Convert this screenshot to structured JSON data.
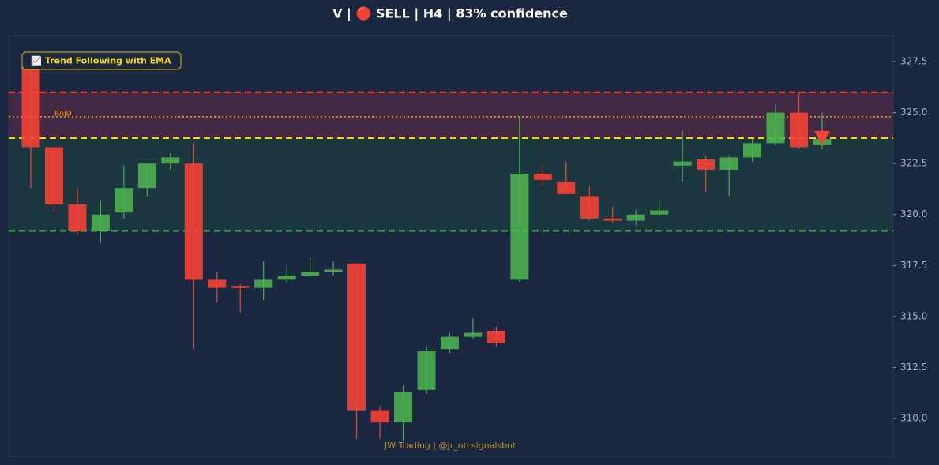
{
  "chart_data": {
    "type": "candlestick",
    "title": "V | 🔴 SELL | H4 | 83% confidence",
    "annotation": "📈 Trend Following with EMA",
    "watermark": "JW Trading | @Jr_otcsignalsbot",
    "up_color": "#4caf50",
    "down_color": "#f44336",
    "open": [
      327.3,
      323.3,
      320.5,
      319.2,
      320.1,
      321.3,
      322.5,
      322.5,
      316.8,
      316.5,
      316.4,
      316.8,
      317.0,
      317.2,
      317.6,
      310.4,
      309.8,
      311.4,
      313.4,
      314.0,
      314.3,
      316.8,
      322.0,
      321.6,
      320.9,
      319.8,
      319.7,
      320.0,
      322.4,
      322.7,
      322.2,
      322.8,
      323.5,
      325.0,
      323.4
    ],
    "high": [
      327.5,
      323.3,
      321.3,
      320.7,
      322.4,
      322.5,
      323.0,
      323.5,
      317.2,
      316.6,
      317.7,
      317.5,
      317.9,
      317.7,
      317.6,
      310.6,
      311.6,
      313.5,
      314.2,
      314.9,
      314.5,
      324.8,
      322.4,
      322.6,
      321.4,
      320.4,
      320.2,
      320.7,
      324.1,
      322.9,
      322.9,
      323.7,
      325.4,
      326.0,
      325.0
    ],
    "low": [
      321.3,
      320.1,
      319.0,
      318.6,
      319.8,
      320.9,
      322.2,
      313.4,
      315.7,
      315.2,
      315.8,
      316.6,
      316.9,
      317.0,
      309.0,
      309.0,
      308.9,
      311.2,
      313.2,
      313.9,
      313.5,
      316.7,
      321.4,
      321.0,
      319.7,
      319.6,
      319.5,
      319.9,
      321.6,
      321.1,
      320.9,
      322.6,
      323.4,
      323.2,
      323.2
    ],
    "close": [
      323.3,
      320.5,
      319.2,
      320.0,
      321.3,
      322.5,
      322.8,
      316.8,
      316.4,
      316.4,
      316.8,
      317.0,
      317.2,
      317.3,
      310.4,
      309.8,
      311.3,
      313.3,
      314.0,
      314.2,
      313.7,
      322.0,
      321.7,
      321.0,
      319.8,
      319.7,
      320.0,
      320.2,
      322.6,
      322.2,
      322.8,
      323.5,
      325.0,
      323.3,
      323.7
    ],
    "zones": [
      {
        "from": 323.75,
        "to": 326.0,
        "color": "#4a2a44"
      },
      {
        "from": 319.2,
        "to": 323.75,
        "color": "#1f3a40"
      }
    ],
    "hlines": [
      {
        "value": 326.0,
        "color": "#f44336",
        "style": "dashed"
      },
      {
        "value": 324.8,
        "color": "#ff9800",
        "style": "dotted",
        "label": "RAID"
      },
      {
        "value": 323.75,
        "color": "#ffd600",
        "style": "dashed"
      },
      {
        "value": 319.2,
        "color": "#4caf50",
        "style": "dashed"
      }
    ],
    "signal": {
      "value": 323.75,
      "color": "#f44336"
    },
    "ylim": [
      308.14,
      328.78
    ],
    "yticks": [
      {
        "value": 310,
        "label": "310.0"
      },
      312.5,
      {
        "value": 315,
        "label": "315.0"
      },
      317.5,
      {
        "value": 320,
        "label": "320.0"
      },
      322.5,
      {
        "value": 325,
        "label": "325.0"
      },
      327.5
    ]
  }
}
